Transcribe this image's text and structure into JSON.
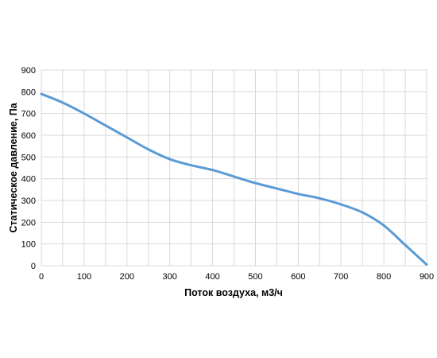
{
  "chart_data": {
    "type": "line",
    "title": "",
    "xlabel": "Поток воздуха, м3/ч",
    "ylabel": "Статическое давление, Па",
    "xlim": [
      0,
      900
    ],
    "ylim": [
      0,
      900
    ],
    "x_ticks": [
      0,
      100,
      200,
      300,
      400,
      500,
      600,
      700,
      800,
      900
    ],
    "y_ticks": [
      0,
      100,
      200,
      300,
      400,
      500,
      600,
      700,
      800,
      900
    ],
    "x_ticks_labels": [
      "0",
      "100",
      "200",
      "300",
      "400",
      "500",
      "600",
      "700",
      "800",
      "900"
    ],
    "y_ticks_labels": [
      "0",
      "100",
      "200",
      "300",
      "400",
      "500",
      "600",
      "700",
      "800",
      "900"
    ],
    "grid": true,
    "legend": false,
    "series": [
      {
        "color": "#5b9bd5",
        "x": [
          0,
          50,
          100,
          150,
          200,
          250,
          300,
          350,
          400,
          450,
          500,
          550,
          600,
          650,
          700,
          750,
          800,
          850,
          900
        ],
        "y": [
          790,
          750,
          700,
          645,
          590,
          535,
          490,
          462,
          440,
          410,
          380,
          355,
          330,
          310,
          282,
          245,
          185,
          95,
          5
        ]
      }
    ]
  }
}
